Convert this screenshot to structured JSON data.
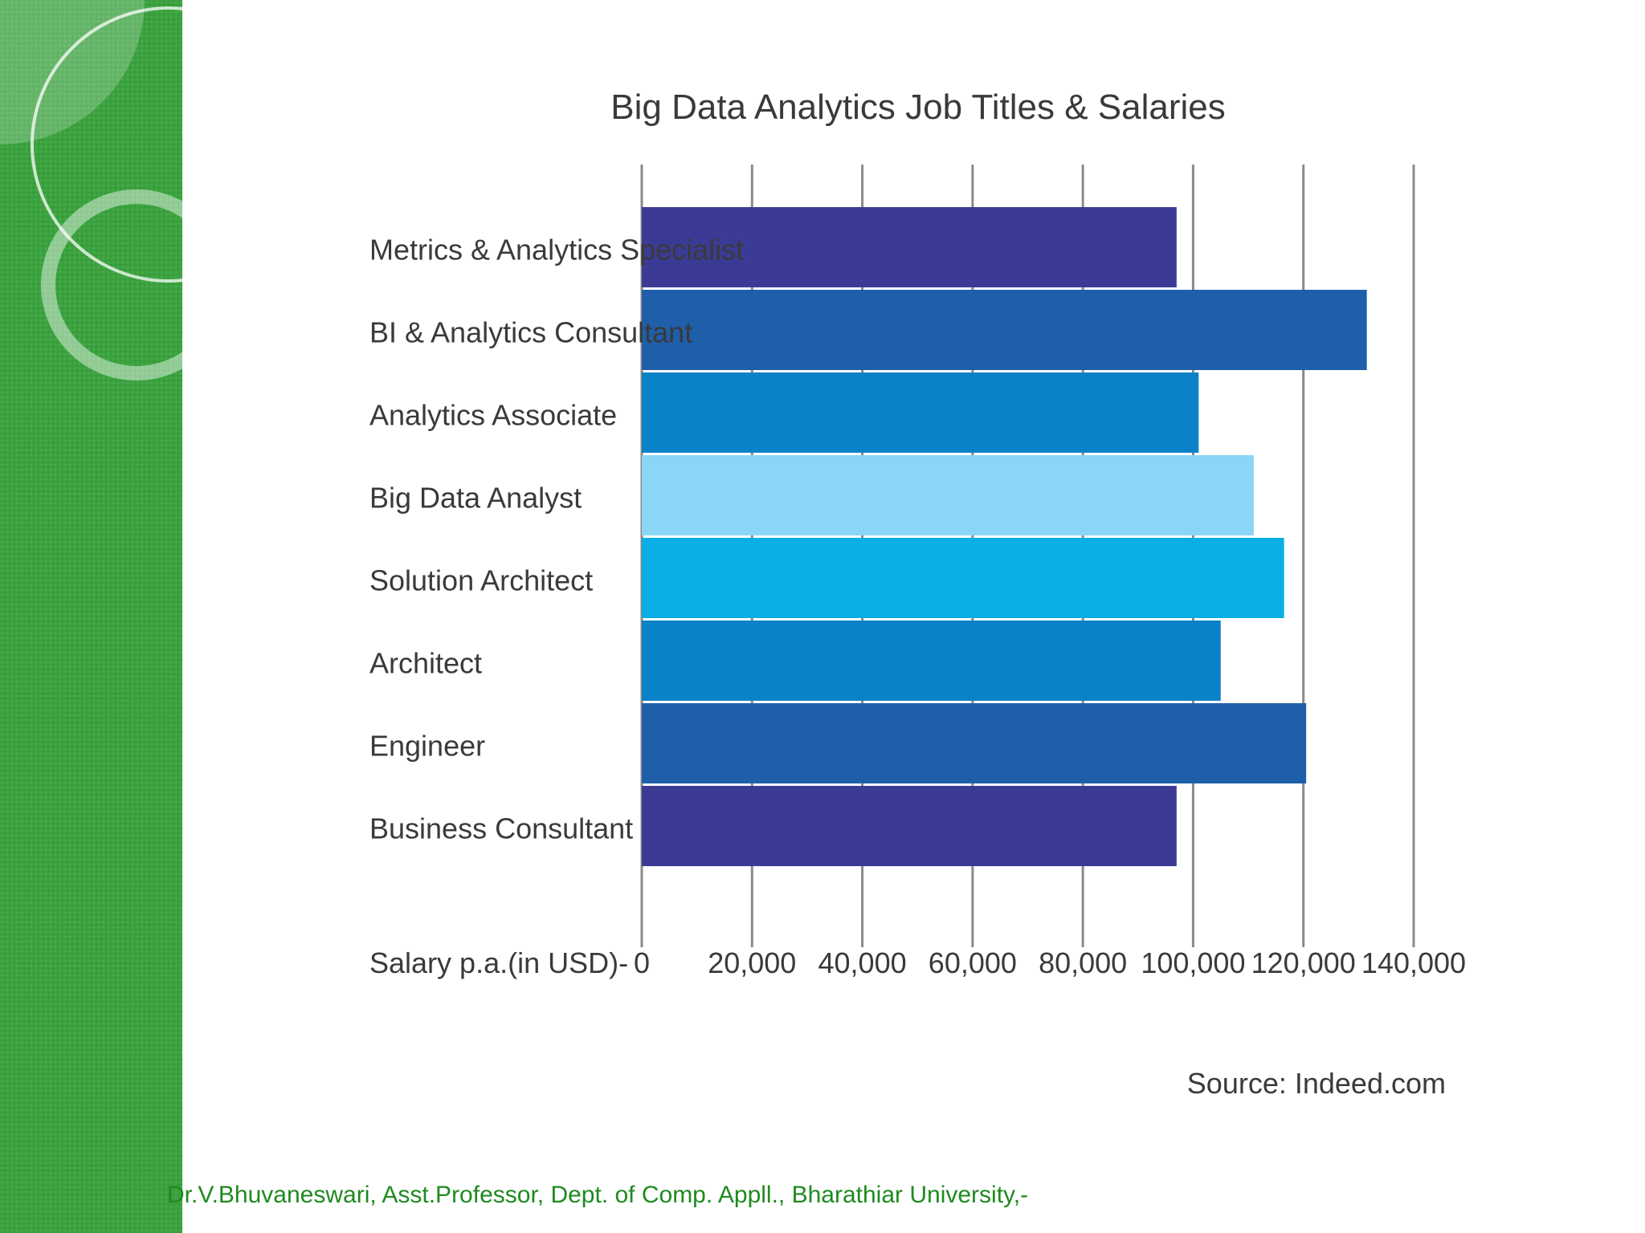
{
  "chart_data": {
    "type": "bar",
    "orientation": "horizontal",
    "title": "Big Data Analytics Job Titles & Salaries",
    "categories": [
      "Metrics & Analytics Specialist",
      "BI & Analytics Consultant",
      "Analytics Associate",
      "Big Data Analyst",
      "Solution Architect",
      "Architect",
      "Engineer",
      "Business Consultant"
    ],
    "values": [
      97000,
      131500,
      101000,
      111000,
      116500,
      105000,
      120500,
      97000
    ],
    "bar_colors": [
      "#3b3b96",
      "#1f5faa",
      "#0a82c8",
      "#8bd6f6",
      "#0aaee6",
      "#0a82c8",
      "#1f5faa",
      "#3b3b96"
    ],
    "xlabel": "Salary p.a.(in USD)-",
    "ylabel": "",
    "xlim": [
      0,
      140000
    ],
    "ticks": [
      0,
      20000,
      40000,
      60000,
      80000,
      100000,
      120000,
      140000
    ],
    "tick_labels": [
      "0",
      "20,000",
      "40,000",
      "60,000",
      "80,000",
      "100,000",
      "120,000",
      "140,000"
    ],
    "grid": true,
    "source": "Source: Indeed.com"
  },
  "footer": {
    "text": "Dr.V.Bhuvaneswari, Asst.Professor, Dept. of Comp. Appll., Bharathiar University,-"
  },
  "colors": {
    "sidebar": "#3aa23e",
    "footer_text": "#1f8a1f",
    "gridline": "#8a8a8a",
    "label_text": "#3a3a3a"
  }
}
